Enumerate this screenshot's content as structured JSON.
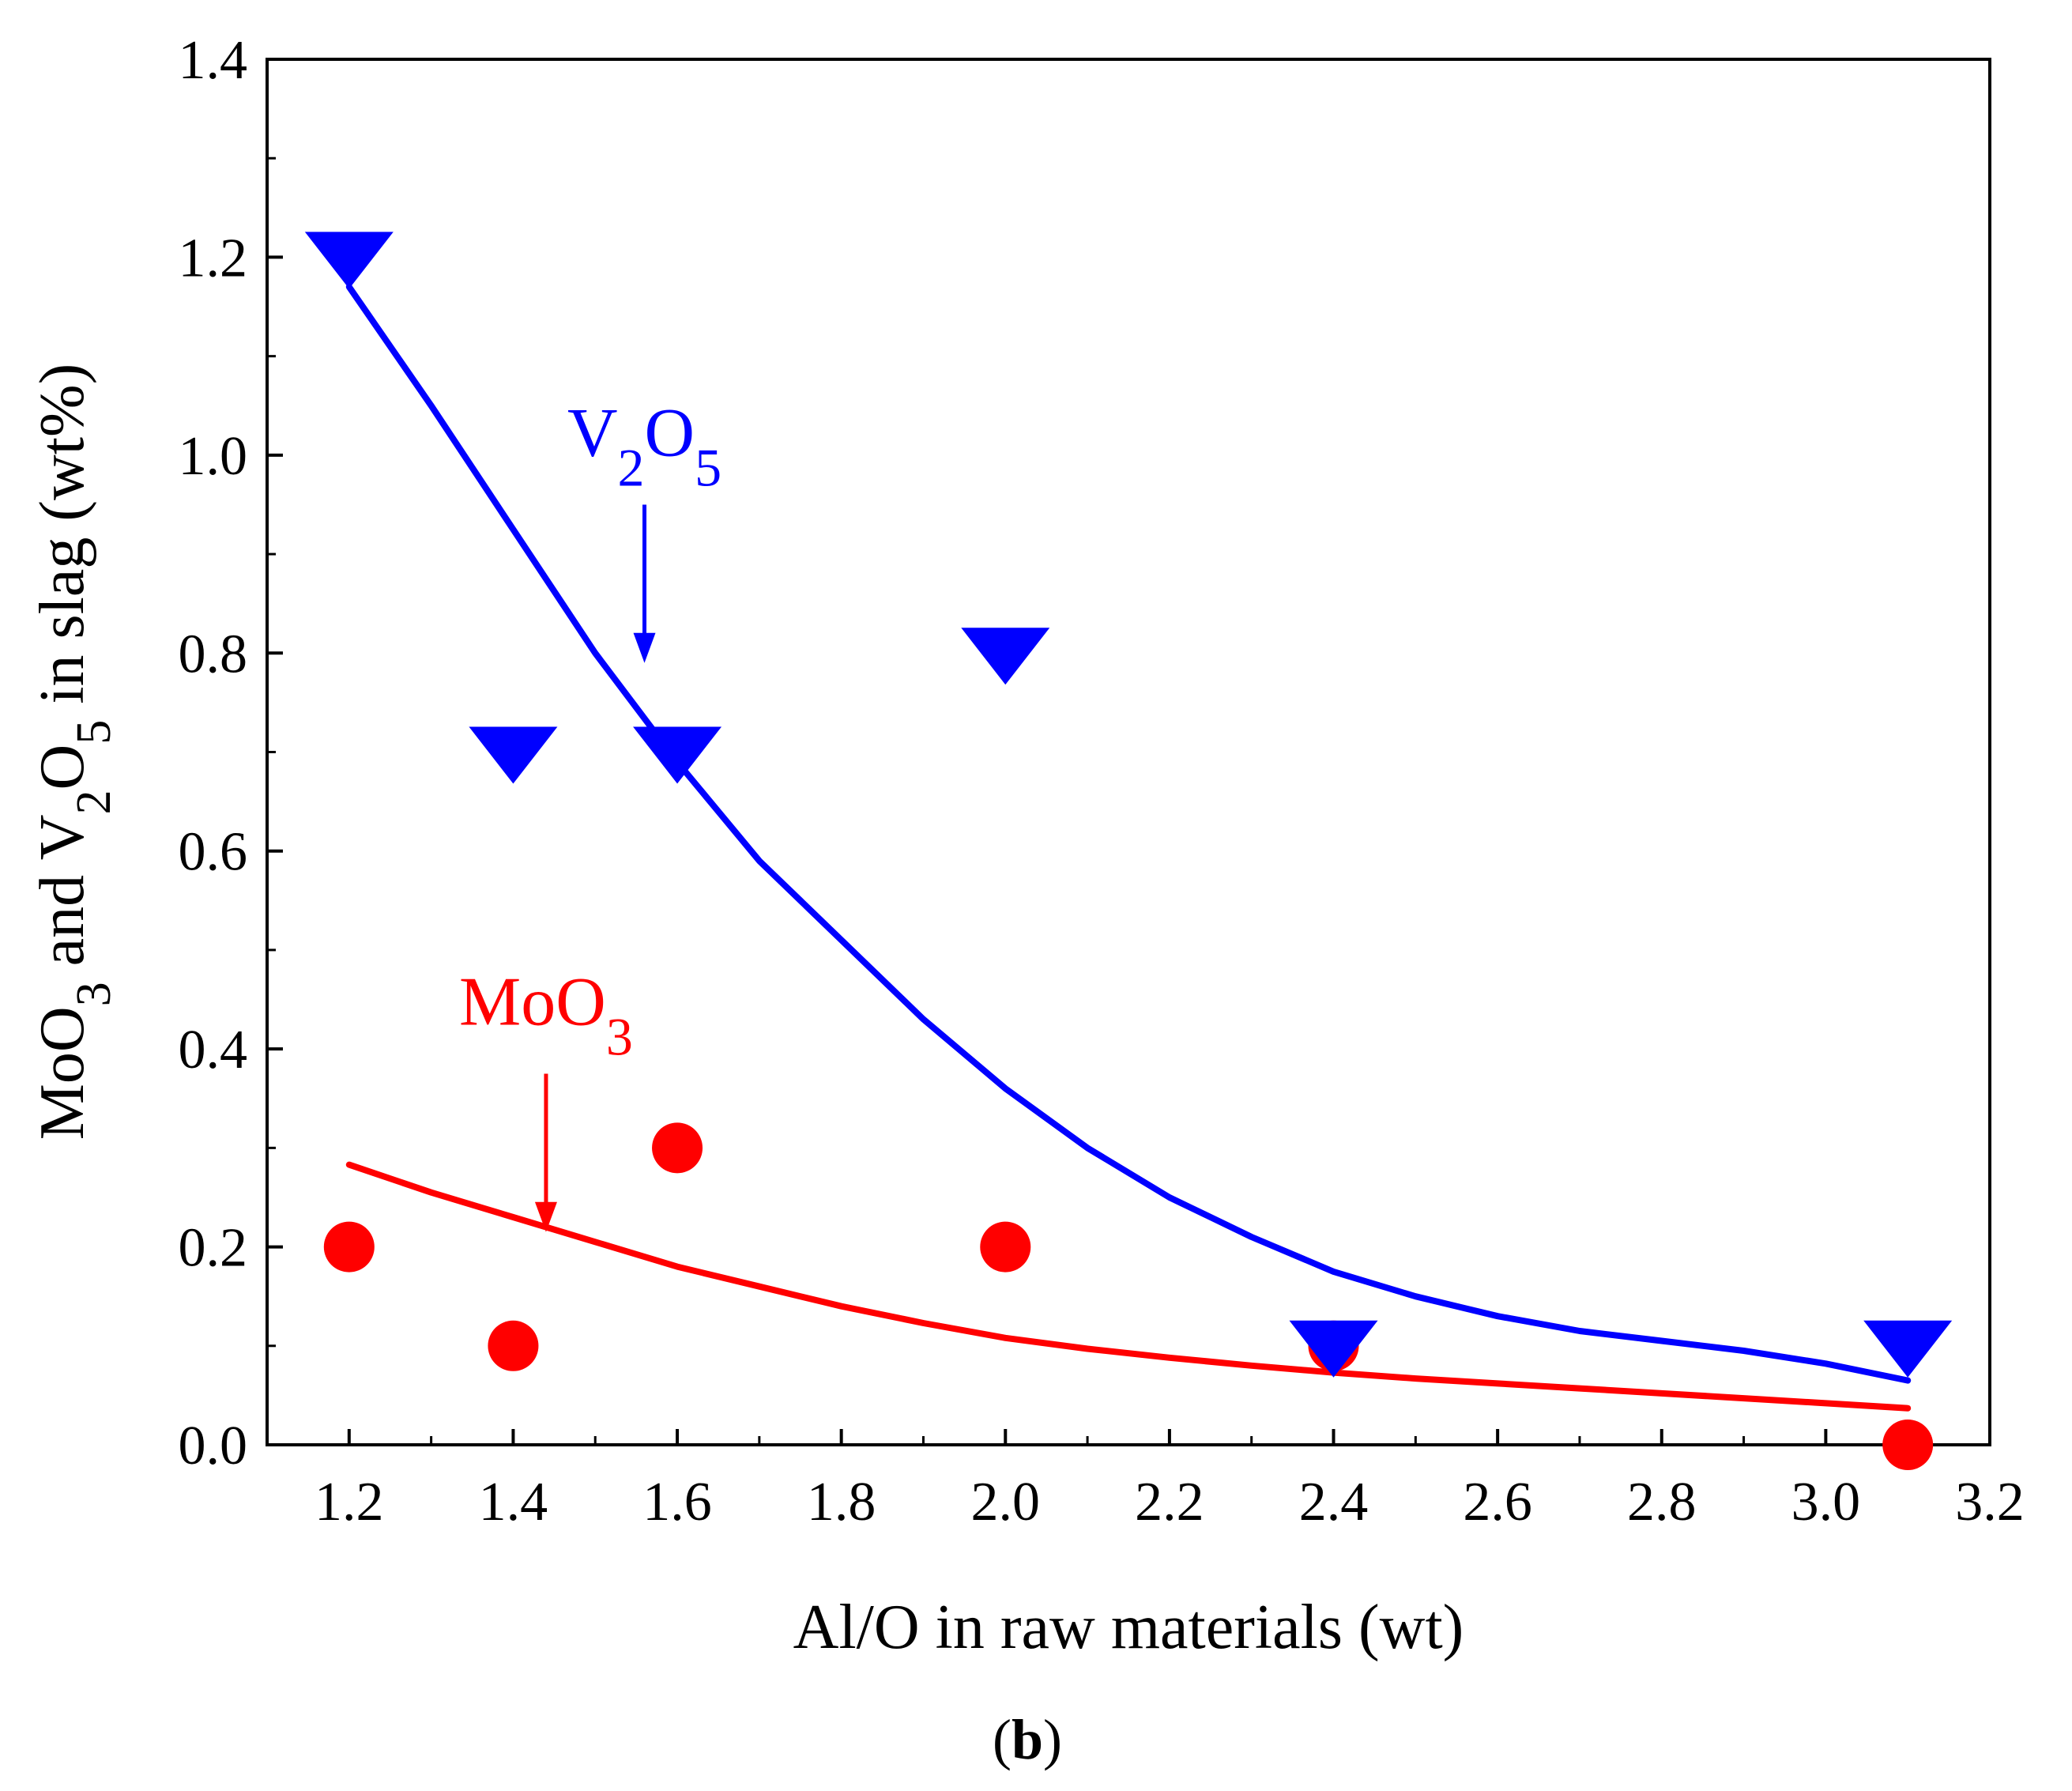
{
  "chart_data": {
    "type": "scatter",
    "title": "",
    "panel_label": "(b)",
    "xlabel": "Al/O in raw materials (wt)",
    "ylabel": {
      "parts": [
        {
          "text": "MoO"
        },
        {
          "text": "3",
          "sub": true
        },
        {
          "text": " and V"
        },
        {
          "text": "2",
          "sub": true
        },
        {
          "text": "O"
        },
        {
          "text": "5",
          "sub": true
        },
        {
          "text": " in slag (wt%)"
        }
      ]
    },
    "xlim": [
      1.1,
      3.2
    ],
    "ylim": [
      0.0,
      1.4
    ],
    "xticks": [
      "1.2",
      "1.4",
      "1.6",
      "1.8",
      "2.0",
      "2.2",
      "2.4",
      "2.6",
      "2.8",
      "3.0",
      "3.2"
    ],
    "yticks": [
      "0.0",
      "0.2",
      "0.4",
      "0.6",
      "0.8",
      "1.0",
      "1.2",
      "1.4"
    ],
    "grid": false,
    "series": [
      {
        "name": "V2O5",
        "color": "#0000ff",
        "marker": "triangle-down",
        "x": [
          1.2,
          1.4,
          1.6,
          2.0,
          2.4,
          3.1
        ],
        "values": [
          1.2,
          0.7,
          0.7,
          0.8,
          0.1,
          0.1
        ],
        "fit": {
          "x": [
            1.2,
            1.3,
            1.4,
            1.5,
            1.6,
            1.7,
            1.8,
            1.9,
            2.0,
            2.1,
            2.2,
            2.3,
            2.4,
            2.5,
            2.6,
            2.7,
            2.8,
            2.9,
            3.0,
            3.1
          ],
          "y": [
            1.17,
            1.05,
            0.925,
            0.8,
            0.69,
            0.59,
            0.51,
            0.43,
            0.36,
            0.3,
            0.25,
            0.21,
            0.175,
            0.15,
            0.13,
            0.115,
            0.105,
            0.095,
            0.082,
            0.065
          ]
        }
      },
      {
        "name": "MoO3",
        "color": "#ff0000",
        "marker": "circle",
        "x": [
          1.2,
          1.4,
          1.6,
          2.0,
          2.4,
          3.1
        ],
        "values": [
          0.2,
          0.1,
          0.3,
          0.2,
          0.1,
          0.0
        ],
        "fit": {
          "x": [
            1.2,
            1.3,
            1.4,
            1.5,
            1.6,
            1.7,
            1.8,
            1.9,
            2.0,
            2.1,
            2.2,
            2.3,
            2.4,
            2.5,
            2.6,
            2.7,
            2.8,
            2.9,
            3.0,
            3.1
          ],
          "y": [
            0.283,
            0.255,
            0.23,
            0.205,
            0.18,
            0.16,
            0.14,
            0.123,
            0.108,
            0.097,
            0.088,
            0.08,
            0.073,
            0.067,
            0.062,
            0.057,
            0.052,
            0.047,
            0.042,
            0.037
          ]
        }
      }
    ],
    "annotations": [
      {
        "name": "v2o5",
        "parts": [
          {
            "text": "V"
          },
          {
            "text": "2",
            "sub": true
          },
          {
            "text": "O"
          },
          {
            "text": "5",
            "sub": true
          }
        ],
        "color": "#0000ff",
        "arrow_x": 1.56,
        "arrow_from_y": 0.95,
        "arrow_to_y": 0.79
      },
      {
        "name": "moo3",
        "parts": [
          {
            "text": "MoO"
          },
          {
            "text": "3",
            "sub": true
          }
        ],
        "color": "#ff0000",
        "arrow_x": 1.44,
        "arrow_from_y": 0.375,
        "arrow_to_y": 0.215
      }
    ]
  }
}
